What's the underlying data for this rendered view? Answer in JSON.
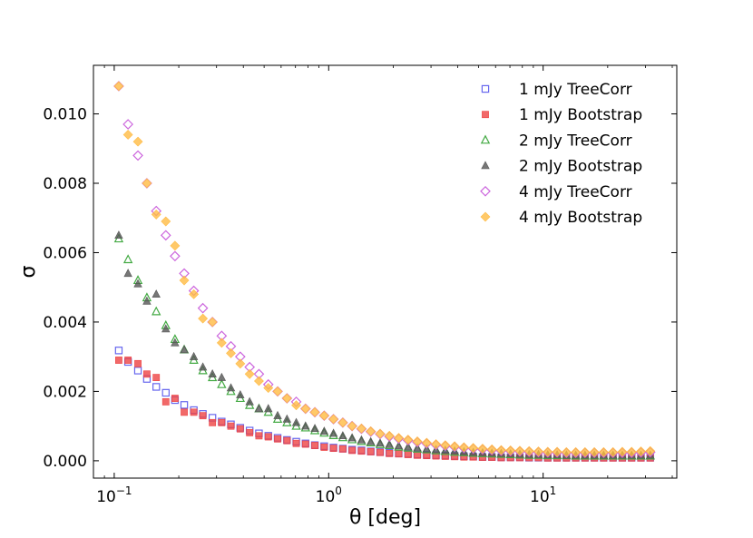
{
  "chart_data": {
    "type": "scatter",
    "title": "",
    "xlabel": "θ [deg]",
    "ylabel": "σ",
    "xscale": "log",
    "xlim": [
      0.08,
      42
    ],
    "ylim": [
      -0.0005,
      0.0114
    ],
    "yticks": [
      0.0,
      0.002,
      0.004,
      0.006,
      0.008,
      0.01
    ],
    "ytick_labels": [
      "0.000",
      "0.002",
      "0.004",
      "0.006",
      "0.008",
      "0.010"
    ],
    "xticks": [
      0.1,
      1,
      10
    ],
    "xtick_labels": [
      {
        "base": "10",
        "exp": "−1"
      },
      {
        "base": "10",
        "exp": "0"
      },
      {
        "base": "10",
        "exp": "1"
      }
    ],
    "legend_position": "top-right",
    "x": [
      0.105,
      0.116,
      0.129,
      0.142,
      0.157,
      0.174,
      0.192,
      0.212,
      0.235,
      0.259,
      0.287,
      0.317,
      0.35,
      0.387,
      0.428,
      0.473,
      0.523,
      0.578,
      0.639,
      0.706,
      0.78,
      0.862,
      0.953,
      1.053,
      1.164,
      1.286,
      1.422,
      1.571,
      1.737,
      1.919,
      2.121,
      2.345,
      2.591,
      2.864,
      3.165,
      3.498,
      3.866,
      4.273,
      4.722,
      5.219,
      5.768,
      6.375,
      7.045,
      7.786,
      8.605,
      9.51,
      10.51,
      11.62,
      12.84,
      14.19,
      15.68,
      17.33,
      19.15,
      21.17,
      23.4,
      25.86,
      28.58,
      31.59
    ],
    "series": [
      {
        "name": "1 mJy TreeCorr",
        "marker": "square",
        "filled": false,
        "color": "#6666ee",
        "values": [
          0.00318,
          0.00285,
          0.0026,
          0.00236,
          0.00213,
          0.00196,
          0.00175,
          0.00161,
          0.00146,
          0.00135,
          0.00124,
          0.00113,
          0.00105,
          0.00095,
          0.00087,
          0.00079,
          0.00072,
          0.00066,
          0.0006,
          0.00055,
          0.0005,
          0.00045,
          0.00042,
          0.00038,
          0.00035,
          0.00032,
          0.0003,
          0.00027,
          0.00025,
          0.00023,
          0.00021,
          0.0002,
          0.00018,
          0.00017,
          0.00016,
          0.00015,
          0.00014,
          0.00013,
          0.00012,
          0.00011,
          0.00011,
          0.0001,
          0.0001,
          0.0001,
          9e-05,
          9e-05,
          9e-05,
          9e-05,
          9e-05,
          9e-05,
          9e-05,
          9e-05,
          9e-05,
          9e-05,
          9e-05,
          9e-05,
          9e-05,
          9e-05
        ]
      },
      {
        "name": "1 mJy Bootstrap",
        "marker": "square",
        "filled": true,
        "color": "#ee4444",
        "values": [
          0.0029,
          0.0029,
          0.0028,
          0.0025,
          0.0024,
          0.0017,
          0.0018,
          0.0014,
          0.0014,
          0.0013,
          0.0011,
          0.0011,
          0.001,
          0.00092,
          0.00081,
          0.00072,
          0.00069,
          0.00063,
          0.00058,
          0.0005,
          0.00048,
          0.00044,
          0.00039,
          0.00036,
          0.00034,
          0.0003,
          0.00028,
          0.00026,
          0.00024,
          0.00021,
          0.0002,
          0.00018,
          0.00016,
          0.00015,
          0.00014,
          0.00013,
          0.00012,
          0.00011,
          0.00011,
          0.0001,
          0.0001,
          9e-05,
          9e-05,
          9e-05,
          9e-05,
          9e-05,
          8e-05,
          8e-05,
          8e-05,
          8e-05,
          8e-05,
          8e-05,
          8e-05,
          8e-05,
          8e-05,
          8e-05,
          8e-05,
          8e-05
        ]
      },
      {
        "name": "2 mJy TreeCorr",
        "marker": "triangle",
        "filled": false,
        "color": "#44aa44",
        "values": [
          0.0064,
          0.0058,
          0.0052,
          0.0047,
          0.0043,
          0.0039,
          0.0035,
          0.0032,
          0.0029,
          0.0026,
          0.0024,
          0.0022,
          0.002,
          0.0018,
          0.0016,
          0.0015,
          0.0014,
          0.0012,
          0.0011,
          0.001,
          0.00095,
          0.00087,
          0.0008,
          0.00073,
          0.00067,
          0.00061,
          0.00056,
          0.00052,
          0.00047,
          0.00044,
          0.0004,
          0.00037,
          0.00034,
          0.00032,
          0.00029,
          0.00027,
          0.00025,
          0.00024,
          0.00022,
          0.00021,
          0.0002,
          0.00019,
          0.00018,
          0.00017,
          0.00016,
          0.00016,
          0.00015,
          0.00015,
          0.00015,
          0.00014,
          0.00014,
          0.00014,
          0.00014,
          0.00014,
          0.00014,
          0.00014,
          0.00014,
          0.00014
        ]
      },
      {
        "name": "2 mJy Bootstrap",
        "marker": "triangle",
        "filled": true,
        "color": "#555555",
        "values": [
          0.0065,
          0.0054,
          0.0051,
          0.0046,
          0.0048,
          0.0038,
          0.0034,
          0.0032,
          0.003,
          0.0027,
          0.0025,
          0.0024,
          0.0021,
          0.0019,
          0.0017,
          0.0015,
          0.0015,
          0.0013,
          0.0012,
          0.0011,
          0.001,
          0.00093,
          0.00085,
          0.00079,
          0.00072,
          0.00066,
          0.0006,
          0.00055,
          0.00051,
          0.00047,
          0.00043,
          0.0004,
          0.00037,
          0.00034,
          0.00032,
          0.0003,
          0.00028,
          0.00026,
          0.00024,
          0.00023,
          0.00022,
          0.00021,
          0.0002,
          0.00019,
          0.00018,
          0.00018,
          0.00017,
          0.00017,
          0.00016,
          0.00016,
          0.00016,
          0.00016,
          0.00016,
          0.00016,
          0.00016,
          0.00016,
          0.00016,
          0.00016
        ]
      },
      {
        "name": "4 mJy TreeCorr",
        "marker": "diamond",
        "filled": false,
        "color": "#cc66dd",
        "values": [
          0.0108,
          0.0097,
          0.0088,
          0.008,
          0.0072,
          0.0065,
          0.0059,
          0.0054,
          0.0049,
          0.0044,
          0.004,
          0.0036,
          0.0033,
          0.003,
          0.0027,
          0.0025,
          0.0022,
          0.002,
          0.0018,
          0.0017,
          0.0015,
          0.0014,
          0.0013,
          0.0012,
          0.0011,
          0.001,
          0.00092,
          0.00084,
          0.00077,
          0.0007,
          0.00064,
          0.00059,
          0.00054,
          0.0005,
          0.00046,
          0.00043,
          0.0004,
          0.00037,
          0.00035,
          0.00033,
          0.00031,
          0.00029,
          0.00028,
          0.00027,
          0.00026,
          0.00025,
          0.00024,
          0.00024,
          0.00023,
          0.00023,
          0.00023,
          0.00023,
          0.00023,
          0.00023,
          0.00023,
          0.00023,
          0.00024,
          0.00025
        ]
      },
      {
        "name": "4 mJy Bootstrap",
        "marker": "diamond",
        "filled": true,
        "color": "#ffbb44",
        "values": [
          0.0108,
          0.0094,
          0.0092,
          0.008,
          0.0071,
          0.0069,
          0.0062,
          0.0052,
          0.0048,
          0.0041,
          0.004,
          0.0034,
          0.0031,
          0.0028,
          0.0025,
          0.0023,
          0.0021,
          0.002,
          0.0018,
          0.0016,
          0.0015,
          0.0014,
          0.0013,
          0.0012,
          0.0011,
          0.001,
          0.00093,
          0.00085,
          0.00078,
          0.00072,
          0.00066,
          0.00061,
          0.00056,
          0.00052,
          0.00048,
          0.00045,
          0.00042,
          0.00039,
          0.00037,
          0.00035,
          0.00033,
          0.00031,
          0.0003,
          0.00029,
          0.00028,
          0.00027,
          0.00026,
          0.00026,
          0.00025,
          0.00025,
          0.00025,
          0.00025,
          0.00025,
          0.00025,
          0.00026,
          0.00026,
          0.00027,
          0.00028
        ]
      }
    ]
  }
}
